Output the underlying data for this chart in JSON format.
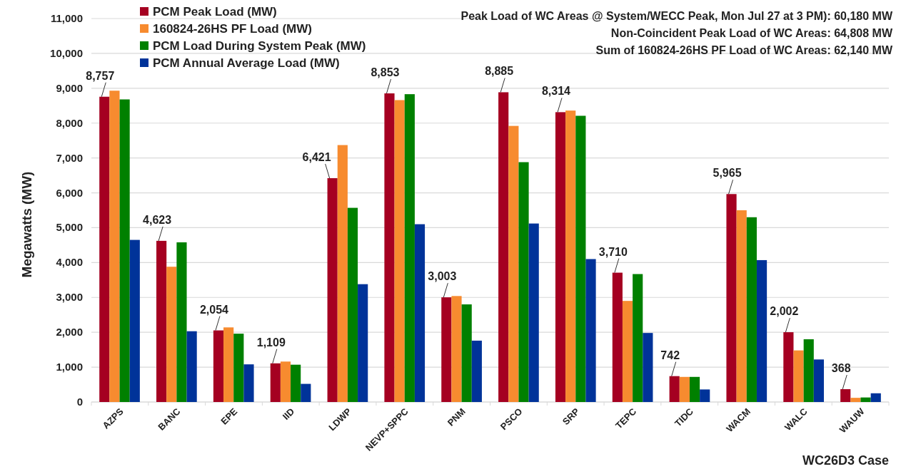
{
  "chart_data": {
    "type": "bar",
    "ylabel": "Megawatts (MW)",
    "xlabel": "WC26D3 Case",
    "annotations": [
      "Peak Load of WC Areas @ System/WECC Peak, Mon Jul 27 at 3 PM): 60,180 MW",
      "Non-Coincident Peak Load of WC Areas: 64,808 MW",
      "Sum of 160824-26HS PF Load of WC Areas: 62,140 MW"
    ],
    "categories": [
      "AZPS",
      "BANC",
      "EPE",
      "IID",
      "LDWP",
      "NEVP+SPPC",
      "PNM",
      "PSCO",
      "SRP",
      "TEPC",
      "TIDC",
      "WACM",
      "WALC",
      "WAUW"
    ],
    "series": [
      {
        "name": "PCM Peak Load (MW)",
        "color": "#a50021",
        "values": [
          8757,
          4623,
          2054,
          1109,
          6421,
          8853,
          3003,
          8885,
          8314,
          3710,
          742,
          5965,
          2002,
          368
        ],
        "value_labels": [
          "8,757",
          "4,623",
          "2,054",
          "1,109",
          "6,421",
          "8,853",
          "3,003",
          "8,885",
          "8,314",
          "3,710",
          "742",
          "5,965",
          "2,002",
          "368"
        ]
      },
      {
        "name": "160824-26HS PF Load (MW)",
        "color": "#f78b2f",
        "values": [
          8930,
          3880,
          2140,
          1160,
          7370,
          8660,
          3040,
          7920,
          8360,
          2900,
          720,
          5500,
          1480,
          120
        ]
      },
      {
        "name": "PCM Load During System Peak (MW)",
        "color": "#008000",
        "values": [
          8680,
          4580,
          1960,
          1070,
          5570,
          8830,
          2800,
          6880,
          8210,
          3670,
          720,
          5300,
          1800,
          130
        ]
      },
      {
        "name": "PCM Annual Average Load (MW)",
        "color": "#003399",
        "values": [
          4650,
          2030,
          1080,
          520,
          3380,
          5100,
          1760,
          5120,
          4100,
          1980,
          360,
          4070,
          1220,
          250
        ]
      }
    ],
    "ylim": [
      0,
      11000
    ],
    "yticks": [
      0,
      {
        "value": 1000,
        "label": "1,000"
      },
      {
        "value": 2000,
        "label": "2,000"
      },
      {
        "value": 3000,
        "label": "3,000"
      },
      {
        "value": 4000,
        "label": "4,000"
      },
      {
        "value": 5000,
        "label": "5,000"
      },
      {
        "value": 6000,
        "label": "6,000"
      },
      {
        "value": 7000,
        "label": "7,000"
      },
      {
        "value": 8000,
        "label": "8,000"
      },
      {
        "value": 9000,
        "label": "9,000"
      },
      {
        "value": 10000,
        "label": "10,000"
      },
      {
        "value": 11000,
        "label": "11,000"
      }
    ],
    "grid": "y",
    "legend": "top left"
  }
}
